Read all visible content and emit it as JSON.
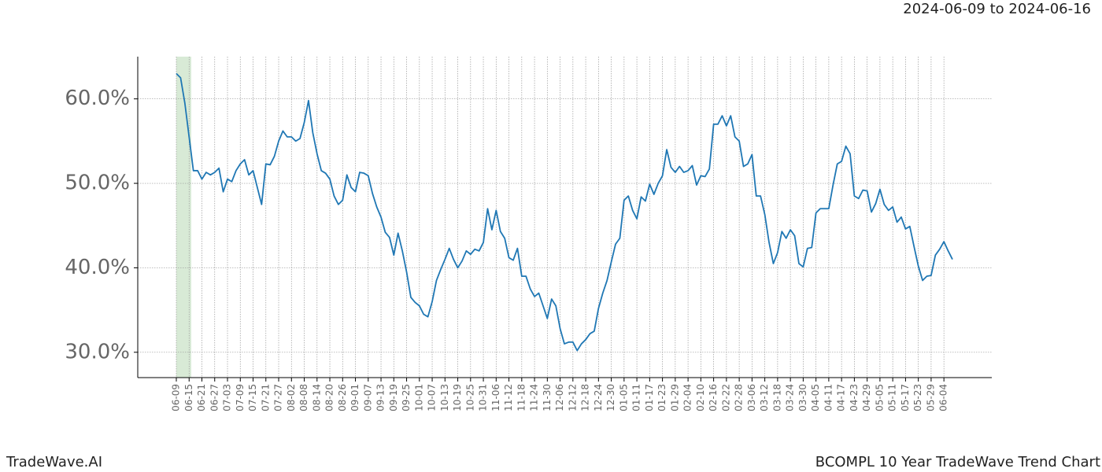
{
  "header": {
    "date_range": "2024-06-09 to 2024-06-16"
  },
  "footer": {
    "left": "TradeWave.AI",
    "right": "BCOMPL 10 Year TradeWave Trend Chart"
  },
  "chart_data": {
    "type": "line",
    "categories": [
      "06-09",
      null,
      null,
      "06-15",
      null,
      null,
      "06-21",
      null,
      null,
      "06-27",
      null,
      null,
      "07-03",
      null,
      null,
      "07-09",
      null,
      null,
      "07-15",
      null,
      null,
      "07-21",
      null,
      null,
      "07-27",
      null,
      null,
      "08-02",
      null,
      null,
      "08-08",
      null,
      null,
      "08-14",
      null,
      null,
      "08-20",
      null,
      null,
      "08-26",
      null,
      null,
      "09-01",
      null,
      null,
      "09-07",
      null,
      null,
      "09-13",
      null,
      null,
      "09-19",
      null,
      null,
      "09-25",
      null,
      null,
      "10-01",
      null,
      null,
      "10-07",
      null,
      null,
      "10-13",
      null,
      null,
      "10-19",
      null,
      null,
      "10-25",
      null,
      null,
      "10-31",
      null,
      null,
      "11-06",
      null,
      null,
      "11-12",
      null,
      null,
      "11-18",
      null,
      null,
      "11-24",
      null,
      null,
      "11-30",
      null,
      null,
      "12-06",
      null,
      null,
      "12-12",
      null,
      null,
      "12-18",
      null,
      null,
      "12-24",
      null,
      null,
      "12-30",
      null,
      null,
      "01-05",
      null,
      null,
      "01-11",
      null,
      null,
      "01-17",
      null,
      null,
      "01-23",
      null,
      null,
      "01-29",
      null,
      null,
      "02-04",
      null,
      null,
      "02-10",
      null,
      null,
      "02-16",
      null,
      null,
      "02-22",
      null,
      null,
      "02-28",
      null,
      null,
      "03-06",
      null,
      null,
      "03-12",
      null,
      null,
      "03-18",
      null,
      null,
      "03-24",
      null,
      null,
      "03-30",
      null,
      null,
      "04-05",
      null,
      null,
      "04-11",
      null,
      null,
      "04-17",
      null,
      null,
      "04-23",
      null,
      null,
      "04-29",
      null,
      null,
      "05-05",
      null,
      null,
      "05-11",
      null,
      null,
      "05-17",
      null,
      null,
      "05-23",
      null,
      null,
      "05-29",
      null,
      null,
      "06-04",
      null,
      null
    ],
    "values": [
      63.0,
      62.5,
      59.5,
      55.5,
      51.5,
      51.5,
      50.5,
      51.3,
      51.0,
      51.3,
      51.8,
      49.0,
      50.5,
      50.2,
      51.5,
      52.3,
      52.8,
      51.0,
      51.5,
      49.5,
      47.5,
      52.3,
      52.2,
      53.2,
      55.0,
      56.2,
      55.5,
      55.5,
      55.0,
      55.3,
      57.2,
      59.8,
      56.0,
      53.5,
      51.5,
      51.2,
      50.5,
      48.5,
      47.5,
      48.0,
      51.0,
      49.5,
      49.0,
      51.3,
      51.2,
      50.9,
      48.8,
      47.2,
      46.0,
      44.2,
      43.6,
      41.5,
      44.1,
      42.0,
      39.5,
      36.5,
      35.9,
      35.5,
      34.5,
      34.2,
      36.0,
      38.5,
      39.8,
      41.0,
      42.3,
      41.0,
      40.0,
      40.8,
      42.0,
      41.6,
      42.2,
      42.0,
      43.0,
      47.0,
      44.5,
      46.8,
      44.3,
      43.5,
      41.2,
      40.9,
      42.3,
      39.0,
      39.0,
      37.5,
      36.6,
      37.0,
      35.5,
      34.0,
      36.3,
      35.5,
      32.8,
      31.0,
      31.2,
      31.2,
      30.2,
      31.0,
      31.5,
      32.2,
      32.5,
      35.2,
      37.0,
      38.5,
      40.7,
      42.8,
      43.5,
      48.0,
      48.5,
      46.8,
      45.8,
      48.4,
      47.9,
      49.9,
      48.7,
      50.0,
      50.9,
      54.0,
      51.9,
      51.3,
      52.0,
      51.3,
      51.5,
      52.1,
      49.8,
      50.9,
      50.8,
      51.7,
      57.0,
      57.0,
      58.0,
      56.8,
      58.0,
      55.5,
      55.0,
      52.0,
      52.3,
      53.4,
      48.5,
      48.5,
      46.3,
      43.0,
      40.5,
      41.8,
      44.3,
      43.5,
      44.5,
      43.8,
      40.5,
      40.1,
      42.3,
      42.4,
      46.5,
      47.0,
      47.0,
      47.0,
      49.8,
      52.3,
      52.6,
      54.4,
      53.5,
      48.5,
      48.2,
      49.2,
      49.1,
      46.6,
      47.6,
      49.3,
      47.5,
      46.8,
      47.2,
      45.4,
      46.0,
      44.6,
      44.9,
      42.5,
      40.2,
      38.5,
      39.0,
      39.1,
      41.5,
      42.2,
      43.1,
      42.0,
      41.0
    ],
    "color": "#1f77b4",
    "highlight": {
      "start": 0,
      "end": 3.5,
      "color": "#d8ead6"
    },
    "ylim": [
      27.0,
      65.0
    ],
    "yticks": [
      {
        "value": 30,
        "label": "30.0%"
      },
      {
        "value": 40,
        "label": "40.0%"
      },
      {
        "value": 50,
        "label": "50.0%"
      },
      {
        "value": 60,
        "label": "60.0%"
      }
    ],
    "grid": true
  }
}
